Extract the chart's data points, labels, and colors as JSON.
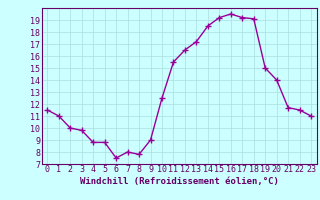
{
  "x": [
    0,
    1,
    2,
    3,
    4,
    5,
    6,
    7,
    8,
    9,
    10,
    11,
    12,
    13,
    14,
    15,
    16,
    17,
    18,
    19,
    20,
    21,
    22,
    23
  ],
  "y": [
    11.5,
    11.0,
    10.0,
    9.8,
    8.8,
    8.8,
    7.5,
    8.0,
    7.8,
    9.0,
    12.5,
    15.5,
    16.5,
    17.2,
    18.5,
    19.2,
    19.5,
    19.2,
    19.1,
    15.0,
    14.0,
    11.7,
    11.5,
    11.0
  ],
  "line_color": "#990099",
  "marker": "+",
  "marker_size": 4,
  "xlabel": "Windchill (Refroidissement éolien,°C)",
  "xlim": [
    -0.5,
    23.5
  ],
  "ylim": [
    7,
    20
  ],
  "yticks": [
    7,
    8,
    9,
    10,
    11,
    12,
    13,
    14,
    15,
    16,
    17,
    18,
    19
  ],
  "xticks": [
    0,
    1,
    2,
    3,
    4,
    5,
    6,
    7,
    8,
    9,
    10,
    11,
    12,
    13,
    14,
    15,
    16,
    17,
    18,
    19,
    20,
    21,
    22,
    23
  ],
  "bg_color": "#ccffff",
  "grid_color": "#aadddd",
  "spine_color": "#660066",
  "tick_color": "#660066",
  "xlabel_color": "#660066",
  "xlabel_fontsize": 6.5,
  "tick_fontsize": 6,
  "line_width": 1.0
}
